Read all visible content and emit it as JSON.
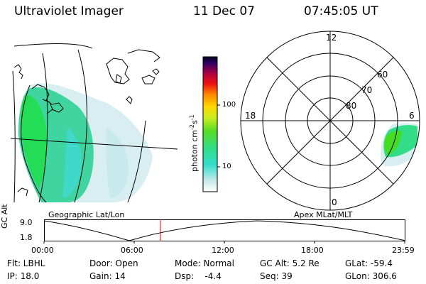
{
  "header": {
    "instrument": "Ultraviolet Imager",
    "date": "11 Dec 07",
    "time": "07:45:05 UT"
  },
  "panels": {
    "left_caption": "Geographic Lat/Lon",
    "right_caption": "Apex MLat/MLT"
  },
  "colorbar": {
    "unit_main": "photon cm",
    "unit_sup1": "-2",
    "unit_mid": "s",
    "unit_sup2": "-1",
    "ticks": [
      "100",
      "10"
    ],
    "scale": "log"
  },
  "polar": {
    "mlt_labels": {
      "top": "12",
      "left": "18",
      "right": "6",
      "bottom": "0"
    },
    "mlat_labels": [
      "60",
      "70",
      "80"
    ]
  },
  "altitude_plot": {
    "ylabel": "GC Alt",
    "ytick_top": "9.0",
    "ytick_bottom": "1.8",
    "xticks": [
      "00:00",
      "06:00",
      "12:00",
      "18:00",
      "23:59"
    ],
    "current_time_marker": "07:45",
    "marker_color": "#ff0000"
  },
  "info": {
    "flt": "Flt: LBHL",
    "ip": "IP: 18.0",
    "door": "Door: Open",
    "gain": "Gain: 14",
    "mode": "Mode: Normal",
    "dsp": "Dsp:    -4.4",
    "gcalt": "GC Alt: 5.2 Re",
    "seq": "Seq: 39",
    "glat": "GLat: -59.4",
    "glon": "GLon: 306.6"
  }
}
